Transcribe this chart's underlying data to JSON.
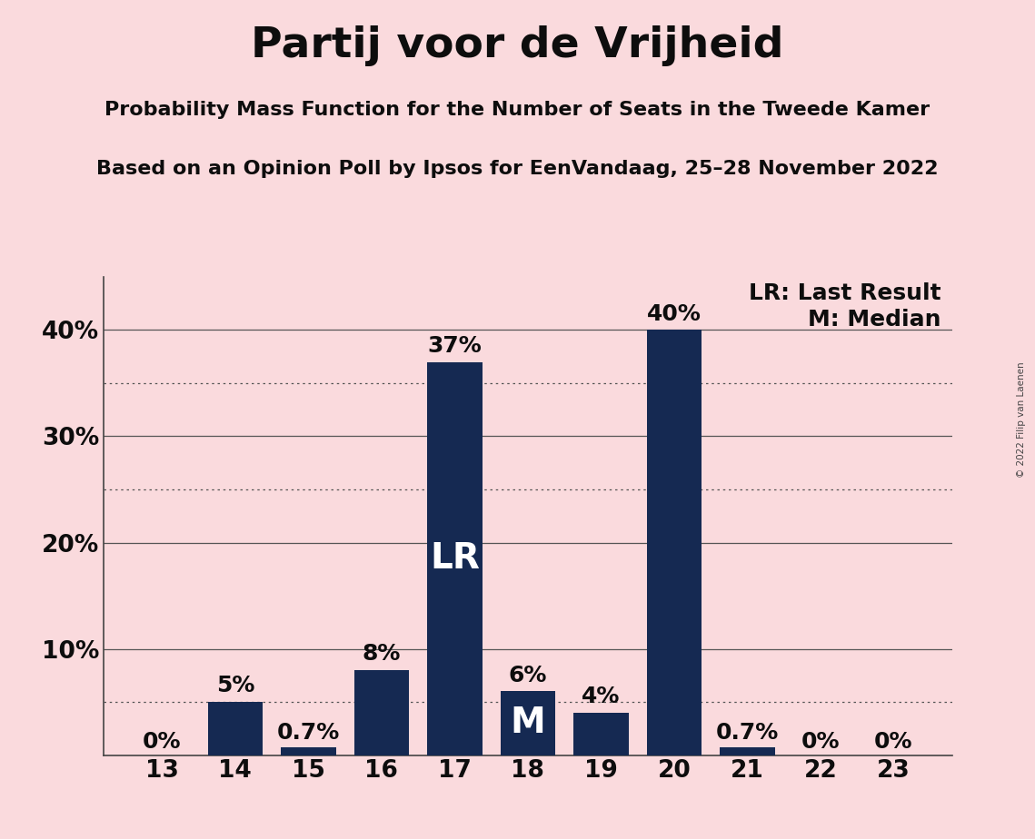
{
  "title": "Partij voor de Vrijheid",
  "subtitle1": "Probability Mass Function for the Number of Seats in the Tweede Kamer",
  "subtitle2": "Based on an Opinion Poll by Ipsos for EenVandaag, 25–28 November 2022",
  "copyright": "© 2022 Filip van Laenen",
  "seats": [
    13,
    14,
    15,
    16,
    17,
    18,
    19,
    20,
    21,
    22,
    23
  ],
  "probabilities": [
    0.0,
    5.0,
    0.7,
    8.0,
    37.0,
    6.0,
    4.0,
    40.0,
    0.7,
    0.0,
    0.0
  ],
  "bar_color": "#152952",
  "background_color": "#fadadd",
  "label_color": "#0d0d0d",
  "lr_seat": 17,
  "median_seat": 18,
  "ylim": [
    0,
    45
  ],
  "yticks": [
    0,
    10,
    20,
    30,
    40
  ],
  "dotted_lines": [
    5.0,
    25.0,
    35.0
  ],
  "solid_lines": [
    10.0,
    20.0,
    30.0,
    40.0
  ],
  "title_fontsize": 34,
  "subtitle_fontsize": 16,
  "bar_label_fontsize": 18,
  "axis_label_fontsize": 19,
  "legend_fontsize": 18,
  "lr_m_fontsize": 28
}
